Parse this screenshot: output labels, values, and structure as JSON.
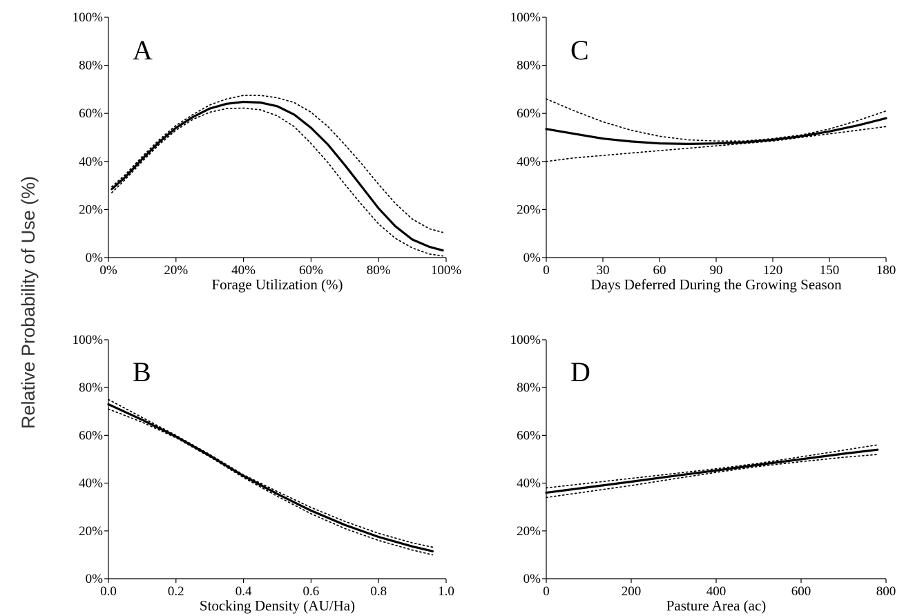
{
  "shared_ylabel": "Relative Probability of Use (%)",
  "chart_data": [
    {
      "panel": "A",
      "type": "line",
      "xlabel": "Forage Utilization (%)",
      "xlim": [
        0,
        100
      ],
      "ylim": [
        0,
        100
      ],
      "x_ticks": [
        0,
        20,
        40,
        60,
        80,
        100
      ],
      "x_tick_labels": [
        "0%",
        "20%",
        "40%",
        "60%",
        "80%",
        "100%"
      ],
      "y_ticks": [
        0,
        20,
        40,
        60,
        80,
        100
      ],
      "y_tick_labels": [
        "0%",
        "20%",
        "40%",
        "60%",
        "80%",
        "100%"
      ],
      "series": [
        {
          "role": "fit",
          "x": [
            1,
            5,
            10,
            15,
            20,
            25,
            30,
            35,
            40,
            45,
            50,
            55,
            60,
            65,
            70,
            75,
            80,
            85,
            90,
            95,
            99
          ],
          "y": [
            28.5,
            33.5,
            41,
            48,
            54,
            58.5,
            62,
            64,
            64.8,
            64.5,
            63,
            59.5,
            54,
            47,
            38.5,
            29.5,
            20.5,
            13,
            7.5,
            4.5,
            3
          ]
        },
        {
          "role": "ci_upper",
          "x": [
            1,
            5,
            10,
            15,
            20,
            25,
            30,
            35,
            40,
            45,
            50,
            55,
            60,
            65,
            70,
            75,
            80,
            85,
            90,
            95,
            99
          ],
          "y": [
            29.5,
            34.5,
            42,
            49,
            55,
            59.5,
            63.5,
            66,
            67.5,
            67.5,
            66.5,
            64.5,
            60.5,
            54.5,
            47,
            39,
            30.5,
            22.5,
            16,
            12,
            10.5
          ]
        },
        {
          "role": "ci_lower",
          "x": [
            1,
            5,
            10,
            15,
            20,
            25,
            30,
            35,
            40,
            45,
            50,
            55,
            60,
            65,
            70,
            75,
            80,
            85,
            90,
            95,
            99
          ],
          "y": [
            27,
            32.5,
            40,
            47,
            53,
            57.5,
            60.5,
            62,
            62.2,
            61.5,
            59,
            54.5,
            47.5,
            39.5,
            30.5,
            22,
            14,
            8,
            4,
            1.5,
            0.7
          ]
        }
      ]
    },
    {
      "panel": "B",
      "type": "line",
      "xlabel": "Stocking Density (AU/Ha)",
      "xlim": [
        0,
        1.0
      ],
      "ylim": [
        0,
        100
      ],
      "x_ticks": [
        0,
        0.2,
        0.4,
        0.6,
        0.8,
        1.0
      ],
      "x_tick_labels": [
        "0.0",
        "0.2",
        "0.4",
        "0.6",
        "0.8",
        "1.0"
      ],
      "y_ticks": [
        0,
        20,
        40,
        60,
        80,
        100
      ],
      "y_tick_labels": [
        "0%",
        "20%",
        "40%",
        "60%",
        "80%",
        "100%"
      ],
      "series": [
        {
          "role": "fit",
          "x": [
            0,
            0.1,
            0.2,
            0.3,
            0.4,
            0.5,
            0.6,
            0.7,
            0.8,
            0.9,
            0.96
          ],
          "y": [
            73,
            66.5,
            59.5,
            51.5,
            43,
            35.5,
            28.5,
            22.5,
            17.5,
            13.5,
            11.5
          ]
        },
        {
          "role": "ci_upper",
          "x": [
            0,
            0.1,
            0.2,
            0.3,
            0.4,
            0.5,
            0.6,
            0.7,
            0.8,
            0.9,
            0.96
          ],
          "y": [
            75,
            67.5,
            60,
            52,
            43.5,
            36.5,
            29.8,
            24,
            19,
            15,
            13.2
          ]
        },
        {
          "role": "ci_lower",
          "x": [
            0,
            0.1,
            0.2,
            0.3,
            0.4,
            0.5,
            0.6,
            0.7,
            0.8,
            0.9,
            0.96
          ],
          "y": [
            71,
            65.5,
            59,
            51,
            42.3,
            34.5,
            27.2,
            21,
            16,
            12,
            10
          ]
        }
      ]
    },
    {
      "panel": "C",
      "type": "line",
      "xlabel": "Days Deferred During the Growing Season",
      "xlim": [
        0,
        180
      ],
      "ylim": [
        0,
        100
      ],
      "x_ticks": [
        0,
        30,
        60,
        90,
        120,
        150,
        180
      ],
      "x_tick_labels": [
        "0",
        "30",
        "60",
        "90",
        "120",
        "150",
        "180"
      ],
      "y_ticks": [
        0,
        20,
        40,
        60,
        80,
        100
      ],
      "y_tick_labels": [
        "0%",
        "20%",
        "40%",
        "60%",
        "80%",
        "100%"
      ],
      "series": [
        {
          "role": "fit",
          "x": [
            0,
            15,
            30,
            45,
            60,
            75,
            90,
            105,
            120,
            135,
            150,
            165,
            180
          ],
          "y": [
            53.5,
            51.5,
            49.5,
            48.3,
            47.5,
            47.3,
            47.5,
            48,
            49,
            50.5,
            52.5,
            55,
            58
          ]
        },
        {
          "role": "ci_upper",
          "x": [
            0,
            15,
            30,
            45,
            60,
            75,
            90,
            105,
            120,
            135,
            150,
            165,
            180
          ],
          "y": [
            66,
            61,
            56.5,
            53,
            50.5,
            49,
            48.5,
            48.5,
            49.5,
            51,
            53.5,
            57,
            61
          ]
        },
        {
          "role": "ci_lower",
          "x": [
            0,
            15,
            30,
            45,
            60,
            75,
            90,
            105,
            120,
            135,
            150,
            165,
            180
          ],
          "y": [
            40,
            41.5,
            42.5,
            43.5,
            44.5,
            45.5,
            46.5,
            47.5,
            48.5,
            50,
            51.5,
            53,
            54.5
          ]
        }
      ]
    },
    {
      "panel": "D",
      "type": "line",
      "xlabel": "Pasture Area (ac)",
      "xlim": [
        0,
        800
      ],
      "ylim": [
        0,
        100
      ],
      "x_ticks": [
        0,
        200,
        400,
        600,
        800
      ],
      "x_tick_labels": [
        "0",
        "200",
        "400",
        "600",
        "800"
      ],
      "y_ticks": [
        0,
        20,
        40,
        60,
        80,
        100
      ],
      "y_tick_labels": [
        "0%",
        "20%",
        "40%",
        "60%",
        "80%",
        "100%"
      ],
      "series": [
        {
          "role": "fit",
          "x": [
            0,
            100,
            200,
            300,
            400,
            500,
            600,
            700,
            780
          ],
          "y": [
            36,
            38.3,
            40.6,
            43,
            45.3,
            47.7,
            50,
            52.3,
            54
          ]
        },
        {
          "role": "ci_upper",
          "x": [
            0,
            100,
            200,
            300,
            400,
            500,
            600,
            700,
            780
          ],
          "y": [
            38,
            40,
            42,
            44,
            46,
            48.3,
            51,
            53.8,
            56
          ]
        },
        {
          "role": "ci_lower",
          "x": [
            0,
            100,
            200,
            300,
            400,
            500,
            600,
            700,
            780
          ],
          "y": [
            34,
            36.5,
            39,
            41.8,
            44.5,
            47,
            49,
            50.8,
            52
          ]
        }
      ]
    }
  ]
}
